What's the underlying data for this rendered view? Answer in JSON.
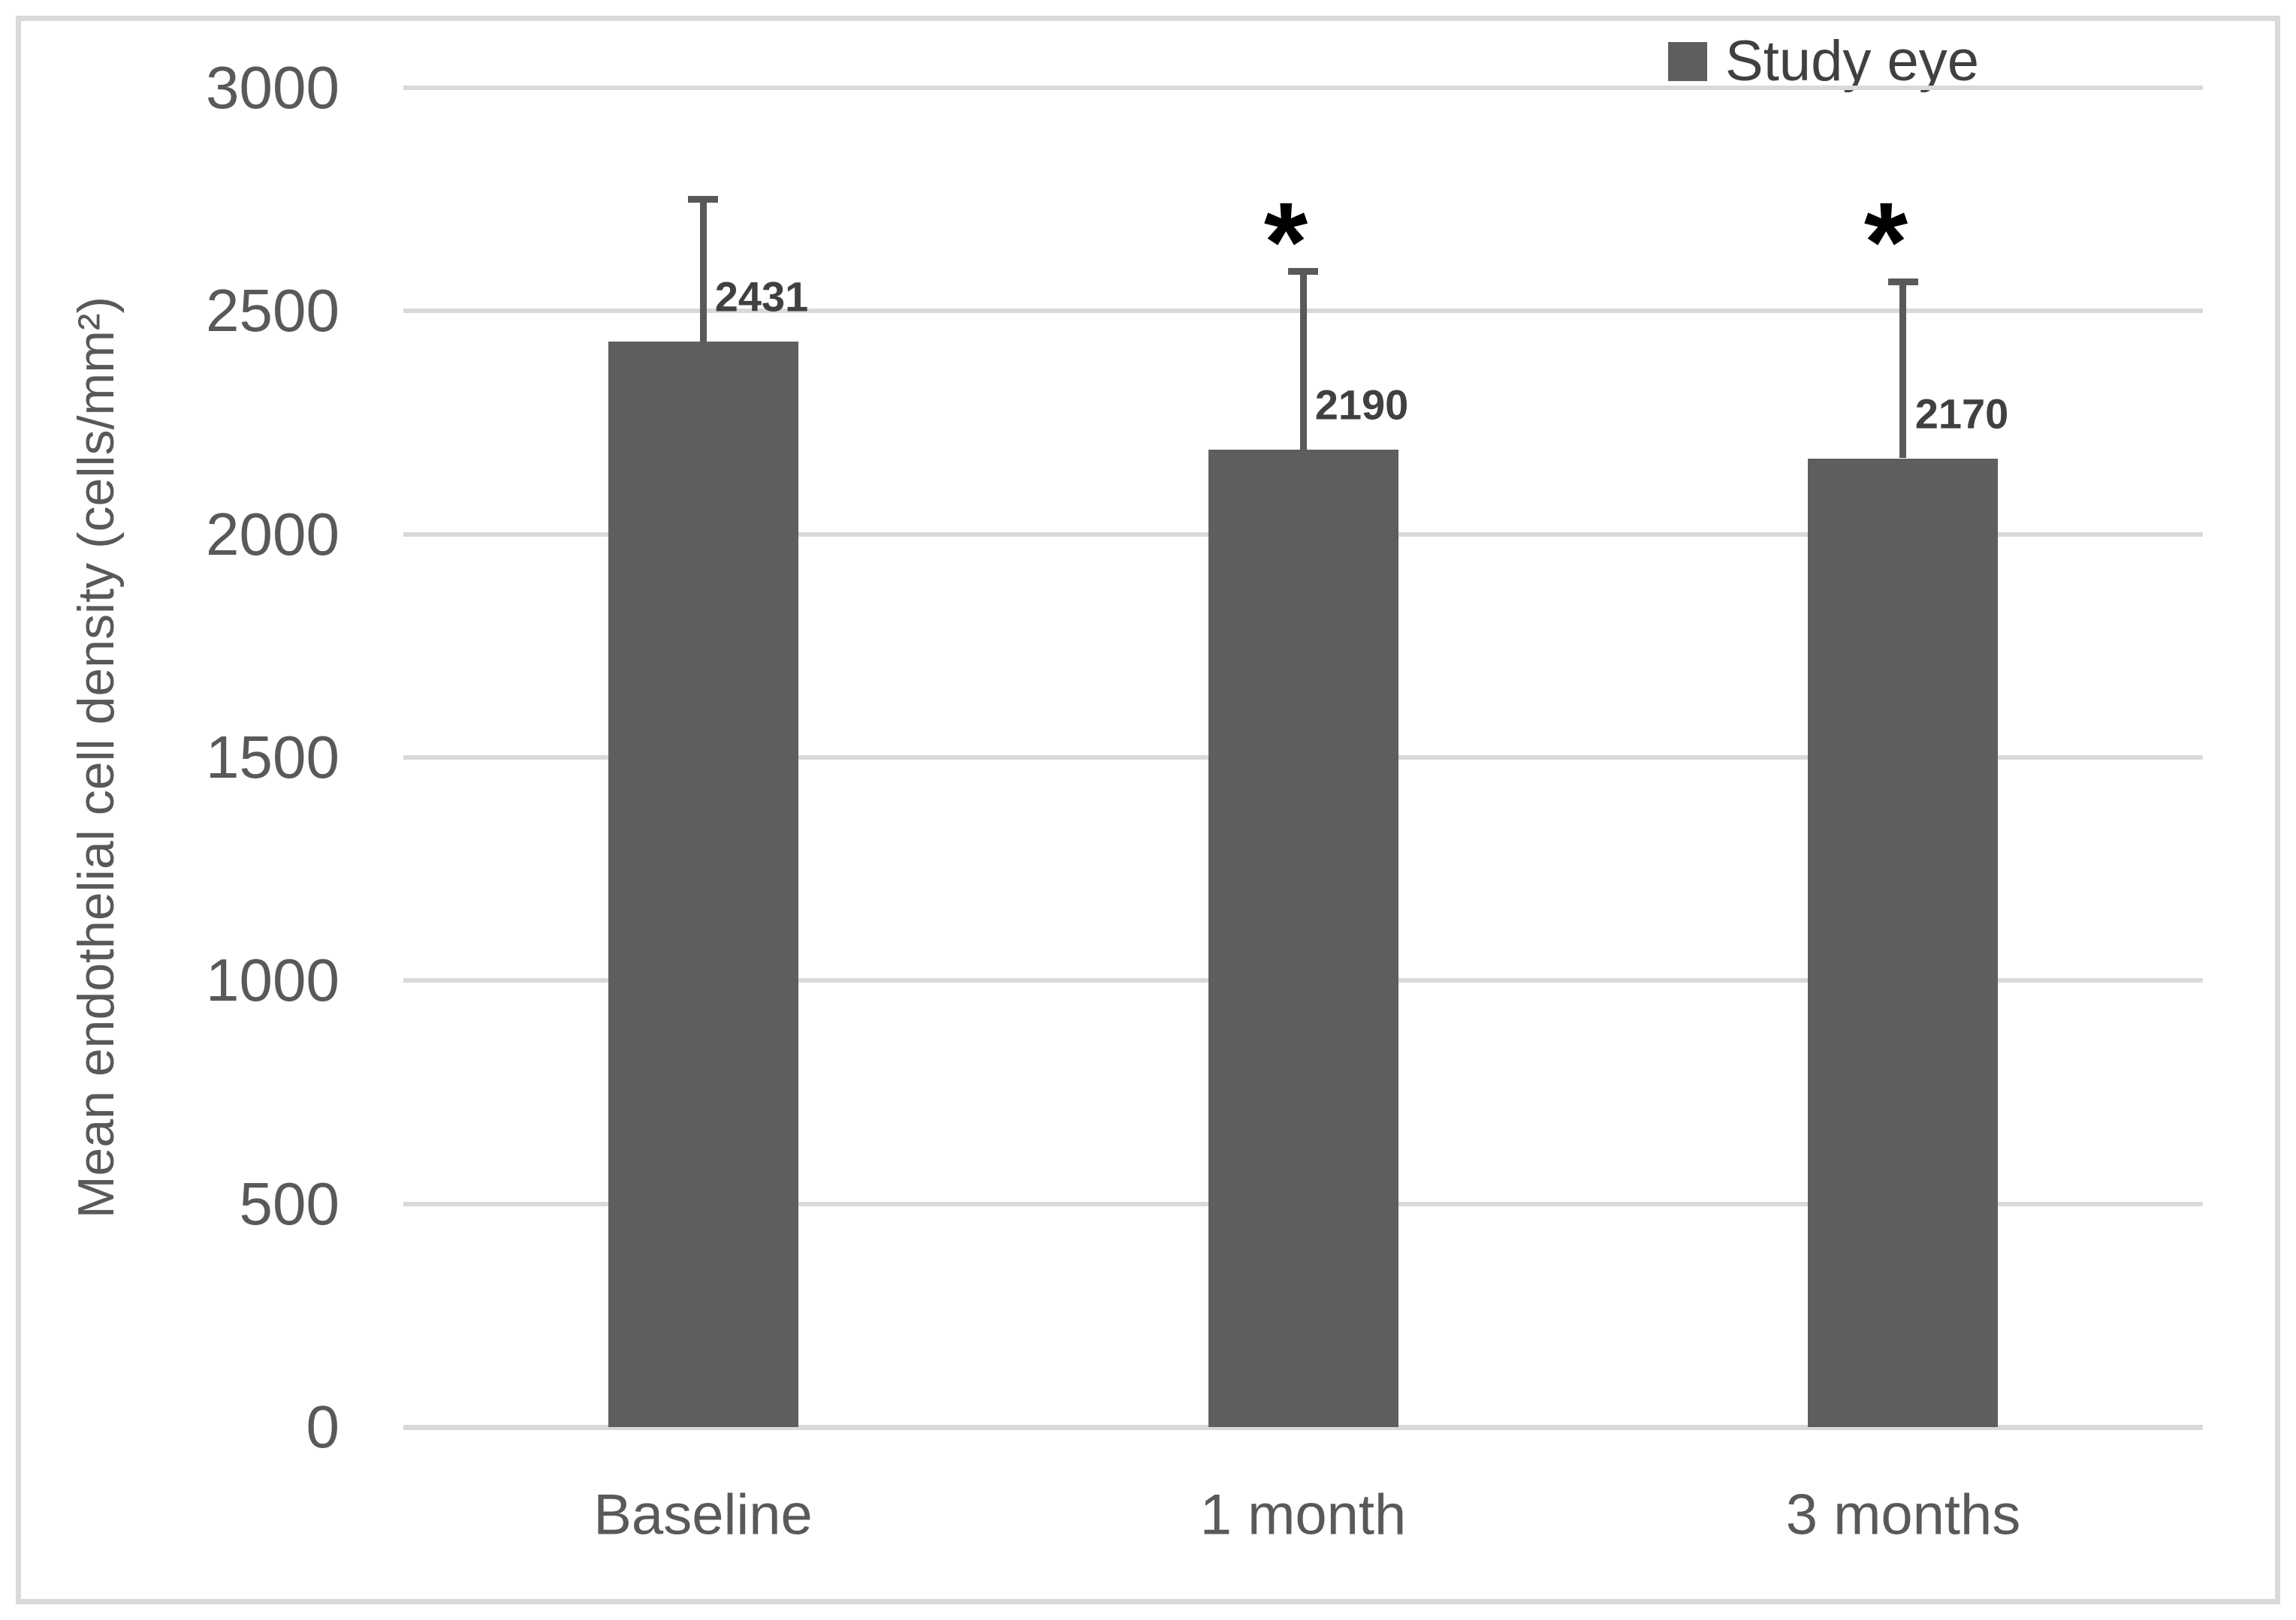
{
  "figure": {
    "border_color": "#D9D9D9",
    "background": "#ffffff"
  },
  "chart_data": {
    "type": "bar",
    "title": "",
    "categories": [
      "Baseline",
      "1 month",
      "3 months"
    ],
    "series": [
      {
        "name": "Study eye",
        "values": [
          2431,
          2190,
          2170
        ],
        "data_labels": [
          "2431",
          "2190",
          "2170"
        ],
        "error_plus": [
          320,
          400,
          396
        ],
        "annotations": [
          "",
          "*",
          "*"
        ]
      }
    ],
    "xlabel": "",
    "ylabel": "Mean endothelial cell density (cells/mm²)",
    "ylim": [
      0,
      3000
    ],
    "yticks": [
      0,
      500,
      1000,
      1500,
      2000,
      2500,
      3000
    ],
    "ytick_labels": [
      "0",
      "500",
      "1000",
      "1500",
      "2000",
      "2500",
      "3000"
    ],
    "grid": "horizontal",
    "legend": {
      "position": "top-right",
      "items": [
        {
          "label": "Study eye",
          "color": "#5E5E5E"
        }
      ]
    },
    "colors": {
      "bar": "#5E5E5E",
      "error_bar": "#595959",
      "gridline": "#D9D9D9",
      "axis_line": "#D9D9D9",
      "tick_text": "#595959",
      "axis_title_text": "#595959",
      "data_label_text": "#404040",
      "annotation": "#000000",
      "border": "#D9D9D9"
    }
  }
}
